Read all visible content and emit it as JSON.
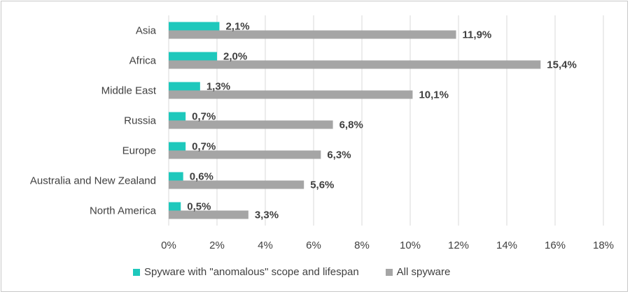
{
  "chart_data": {
    "type": "bar",
    "orientation": "horizontal",
    "categories": [
      "Asia",
      "Africa",
      "Middle East",
      "Russia",
      "Europe",
      "Australia and New Zealand",
      "North America"
    ],
    "series": [
      {
        "name": "Spyware with \"anomalous\" scope and lifespan",
        "color": "#1ec8bc",
        "values": [
          2.1,
          2.0,
          1.3,
          0.7,
          0.7,
          0.6,
          0.5
        ],
        "labels": [
          "2,1%",
          "2,0%",
          "1,3%",
          "0,7%",
          "0,7%",
          "0,6%",
          "0,5%"
        ]
      },
      {
        "name": "All spyware",
        "color": "#a5a5a5",
        "values": [
          11.9,
          15.4,
          10.1,
          6.8,
          6.3,
          5.6,
          3.3
        ],
        "labels": [
          "11,9%",
          "15,4%",
          "10,1%",
          "6,8%",
          "6,3%",
          "5,6%",
          "3,3%"
        ]
      }
    ],
    "xlim": [
      0,
      18
    ],
    "xticks": [
      0,
      2,
      4,
      6,
      8,
      10,
      12,
      14,
      16,
      18
    ],
    "xtick_labels": [
      "0%",
      "2%",
      "4%",
      "6%",
      "8%",
      "10%",
      "12%",
      "14%",
      "16%",
      "18%"
    ],
    "grid": true,
    "legend_position": "bottom",
    "title": "",
    "xlabel": "",
    "ylabel": ""
  }
}
